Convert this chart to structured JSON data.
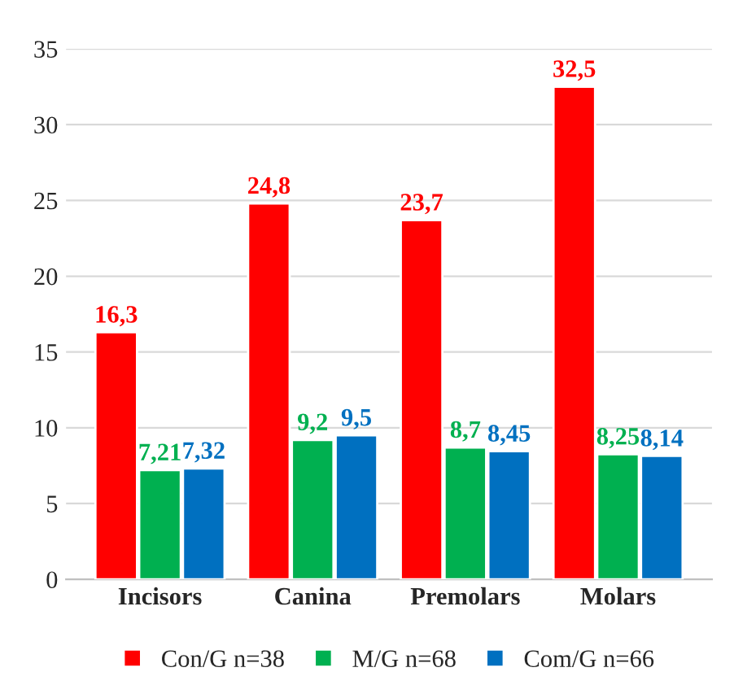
{
  "chart_data": {
    "type": "bar",
    "categories": [
      "Incisors",
      "Canina",
      "Premolars",
      "Molars"
    ],
    "series": [
      {
        "name": "Con/G n=38",
        "color": "#ff0000",
        "values": [
          16.3,
          24.8,
          23.7,
          32.5
        ],
        "value_labels": [
          "16,3",
          "24,8",
          "23,7",
          "32,5"
        ]
      },
      {
        "name": "M/G n=68",
        "color": "#00b050",
        "values": [
          7.21,
          9.2,
          8.7,
          8.25
        ],
        "value_labels": [
          "7,21",
          "9,2",
          "8,7",
          "8,25"
        ]
      },
      {
        "name": "Com/G n=66",
        "color": "#0070c0",
        "values": [
          7.32,
          9.5,
          8.45,
          8.14
        ],
        "value_labels": [
          "7,32",
          "9,5",
          "8,45",
          "8,14"
        ]
      }
    ],
    "ylim": [
      0,
      35
    ],
    "yticks": [
      0,
      5,
      10,
      15,
      20,
      25,
      30,
      35
    ],
    "grid": "y",
    "legend": "bottom"
  }
}
